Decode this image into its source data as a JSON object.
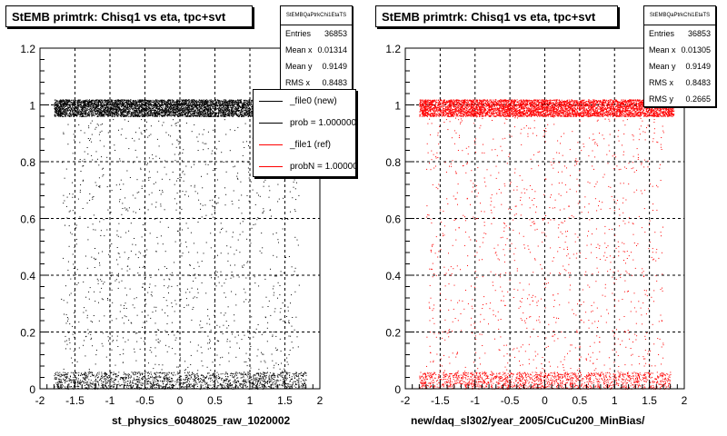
{
  "chart_data": [
    {
      "type": "scatter",
      "title": "StEMB primtrk: Chisq1 vs eta, tpc+svt",
      "xlabel": "st_physics_6048025_raw_1020002",
      "ylabel": "",
      "xlim": [
        -2,
        2
      ],
      "ylim": [
        0,
        1.2
      ],
      "x_ticks": [
        "-2",
        "-1.5",
        "-1",
        "-0.5",
        "0",
        "0.5",
        "1",
        "1.5",
        "2"
      ],
      "y_ticks": [
        "0",
        "0.2",
        "0.4",
        "0.6",
        "0.8",
        "1",
        "1.2"
      ],
      "grid": true,
      "marker_color": "#000000",
      "point_density": [
        {
          "x_range": [
            -1.8,
            1.85
          ],
          "y_range": [
            0.96,
            1.02
          ],
          "level": "very high"
        },
        {
          "x_range": [
            -1.8,
            1.8
          ],
          "y_range": [
            0.0,
            0.06
          ],
          "level": "high"
        },
        {
          "x_range": [
            -1.7,
            1.7
          ],
          "y_range": [
            0.06,
            0.96
          ],
          "level": "sparse"
        }
      ],
      "stats": {
        "header": "StEMBQaPtrkChi1EtaTS",
        "rows": [
          {
            "label": "Entries",
            "value": "36853"
          },
          {
            "label": "Mean x",
            "value": "0.01314"
          },
          {
            "label": "Mean y",
            "value": "0.9149"
          },
          {
            "label": "RMS x",
            "value": "0.8483"
          }
        ]
      },
      "legend": [
        {
          "label": "_file0 (new)",
          "color": "#000000"
        },
        {
          "label": "prob = 1.000000",
          "color": "#000000"
        },
        {
          "label": "_file1 (ref)",
          "color": "#ff0000"
        },
        {
          "label": "probN = 1.000000",
          "color": "#ff0000"
        }
      ]
    },
    {
      "type": "scatter",
      "title": "StEMB primtrk: Chisq1 vs eta, tpc+svt",
      "xlabel": "new/daq_sl302/year_2005/CuCu200_MinBias/",
      "ylabel": "",
      "xlim": [
        -2,
        2
      ],
      "ylim": [
        0,
        1.2
      ],
      "x_ticks": [
        "-2",
        "-1.5",
        "-1",
        "-0.5",
        "0",
        "0.5",
        "1",
        "1.5",
        "2"
      ],
      "y_ticks": [
        "0",
        "0.2",
        "0.4",
        "0.6",
        "0.8",
        "1",
        "1.2"
      ],
      "grid": true,
      "marker_color": "#ff0000",
      "point_density": [
        {
          "x_range": [
            -1.8,
            1.85
          ],
          "y_range": [
            0.96,
            1.02
          ],
          "level": "very high"
        },
        {
          "x_range": [
            -1.8,
            1.8
          ],
          "y_range": [
            0.0,
            0.06
          ],
          "level": "high"
        },
        {
          "x_range": [
            -1.7,
            1.7
          ],
          "y_range": [
            0.06,
            0.96
          ],
          "level": "sparse"
        }
      ],
      "stats": {
        "header": "StEMBQaPtrkChi1EtaTS",
        "rows": [
          {
            "label": "Entries",
            "value": "36853"
          },
          {
            "label": "Mean x",
            "value": "0.01305"
          },
          {
            "label": "Mean y",
            "value": "0.9149"
          },
          {
            "label": "RMS x",
            "value": "0.8483"
          },
          {
            "label": "RMS y",
            "value": "0.2665"
          }
        ]
      }
    }
  ]
}
